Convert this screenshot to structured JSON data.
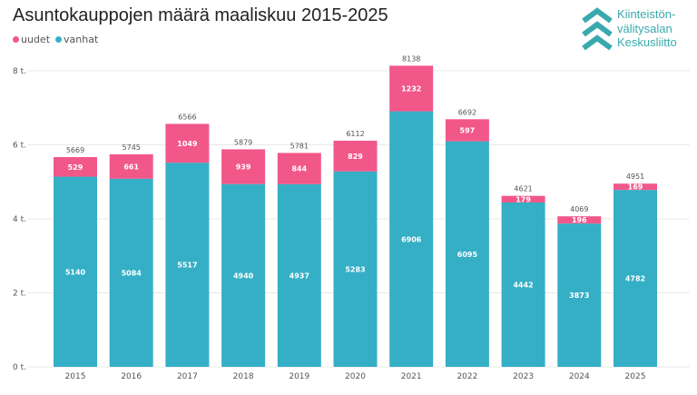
{
  "logo": {
    "lines": [
      "Kiinteistön-",
      "välitysalan",
      "Keskusliitto"
    ]
  },
  "colors": {
    "uudet": "#F2578A",
    "vanhat": "#35AFC6",
    "grid": "#e8e8e8"
  },
  "chart_data": {
    "type": "bar",
    "stacked": true,
    "title": "Asuntokauppojen määrä maaliskuu 2015-2025",
    "xlabel": "",
    "ylabel": "",
    "ylim": [
      0,
      8000
    ],
    "yticks": [
      0,
      2000,
      4000,
      6000,
      8000
    ],
    "ytick_labels": [
      "0 t.",
      "2 t.",
      "4 t.",
      "6 t.",
      "8 t."
    ],
    "grid": true,
    "legend_placement": "top-left",
    "categories": [
      "2015",
      "2016",
      "2017",
      "2018",
      "2019",
      "2020",
      "2021",
      "2022",
      "2023",
      "2024",
      "2025"
    ],
    "series": [
      {
        "name": "vanhat",
        "values": [
          5140,
          5084,
          5517,
          4940,
          4937,
          5283,
          6906,
          6095,
          4442,
          3873,
          4782
        ]
      },
      {
        "name": "uudet",
        "values": [
          529,
          661,
          1049,
          939,
          844,
          829,
          1232,
          597,
          179,
          196,
          169
        ]
      }
    ],
    "totals": [
      5669,
      5745,
      6566,
      5879,
      5781,
      6112,
      8138,
      6692,
      4621,
      4069,
      4951
    ]
  }
}
